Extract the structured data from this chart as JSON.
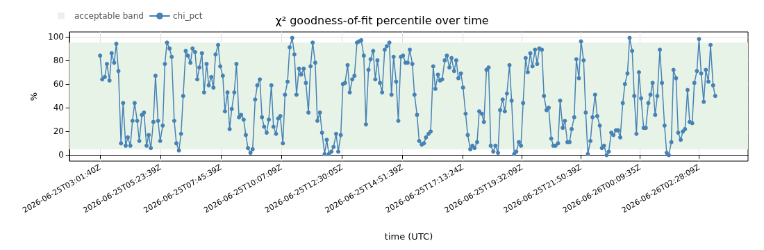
{
  "chart_data": {
    "type": "line",
    "title": "χ² goodness-of-fit percentile over time",
    "xlabel": "time (UTC)",
    "ylabel": "%",
    "x": [
      "2026-06-25T03:02",
      "2026-06-25T03:07",
      "2026-06-25T03:13",
      "2026-06-25T03:18",
      "2026-06-25T03:24",
      "2026-06-25T03:29",
      "2026-06-25T03:35",
      "2026-06-25T03:40",
      "2026-06-25T03:45",
      "2026-06-25T03:51",
      "2026-06-25T03:56",
      "2026-06-25T04:02",
      "2026-06-25T04:07",
      "2026-06-25T04:13",
      "2026-06-25T04:18",
      "2026-06-25T04:23",
      "2026-06-25T04:29",
      "2026-06-25T04:34",
      "2026-06-25T04:40",
      "2026-06-25T04:45",
      "2026-06-25T04:51",
      "2026-06-25T04:56",
      "2026-06-25T05:01",
      "2026-06-25T05:07",
      "2026-06-25T05:12",
      "2026-06-25T05:18",
      "2026-06-25T05:23",
      "2026-06-25T05:29",
      "2026-06-25T05:34",
      "2026-06-25T05:39",
      "2026-06-25T05:45",
      "2026-06-25T05:50",
      "2026-06-25T05:56",
      "2026-06-25T06:01",
      "2026-06-25T06:07",
      "2026-06-25T06:12",
      "2026-06-25T06:17",
      "2026-06-25T06:23",
      "2026-06-25T06:28",
      "2026-06-25T06:34",
      "2026-06-25T06:39",
      "2026-06-25T06:45",
      "2026-06-25T06:50",
      "2026-06-25T06:55",
      "2026-06-25T07:01",
      "2026-06-25T07:06",
      "2026-06-25T07:12",
      "2026-06-25T07:17",
      "2026-06-25T07:23",
      "2026-06-25T07:28",
      "2026-06-25T07:33",
      "2026-06-25T07:39",
      "2026-06-25T07:44",
      "2026-06-25T07:50",
      "2026-06-25T07:55",
      "2026-06-25T08:01",
      "2026-06-25T08:06",
      "2026-06-25T08:11",
      "2026-06-25T08:17",
      "2026-06-25T08:22",
      "2026-06-25T08:28",
      "2026-06-25T08:33",
      "2026-06-25T08:39",
      "2026-06-25T08:44",
      "2026-06-25T08:49",
      "2026-06-25T08:55",
      "2026-06-25T09:00",
      "2026-06-25T09:06",
      "2026-06-25T09:11",
      "2026-06-25T09:17",
      "2026-06-25T09:22",
      "2026-06-25T09:27",
      "2026-06-25T09:33",
      "2026-06-25T09:38",
      "2026-06-25T09:44",
      "2026-06-25T09:49",
      "2026-06-25T09:55",
      "2026-06-25T10:00",
      "2026-06-25T10:05",
      "2026-06-25T10:11",
      "2026-06-25T10:16",
      "2026-06-25T10:22",
      "2026-06-25T10:27",
      "2026-06-25T10:33",
      "2026-06-25T10:38",
      "2026-06-25T10:43",
      "2026-06-25T10:49",
      "2026-06-25T10:54",
      "2026-06-25T11:00",
      "2026-06-25T11:05",
      "2026-06-25T11:11",
      "2026-06-25T11:16",
      "2026-06-25T11:21",
      "2026-06-25T11:27",
      "2026-06-25T11:32",
      "2026-06-25T11:38",
      "2026-06-25T11:43",
      "2026-06-25T11:49",
      "2026-06-25T11:54",
      "2026-06-25T11:59",
      "2026-06-25T12:05",
      "2026-06-25T12:10",
      "2026-06-25T12:16",
      "2026-06-25T12:21",
      "2026-06-25T12:27",
      "2026-06-25T12:32",
      "2026-06-25T12:37",
      "2026-06-25T12:43",
      "2026-06-25T12:48",
      "2026-06-25T12:54",
      "2026-06-25T12:59",
      "2026-06-25T13:05",
      "2026-06-25T13:10",
      "2026-06-25T13:15",
      "2026-06-25T13:21",
      "2026-06-25T13:26",
      "2026-06-25T13:32",
      "2026-06-25T13:37",
      "2026-06-25T13:43",
      "2026-06-25T13:48",
      "2026-06-25T13:53",
      "2026-06-25T13:59",
      "2026-06-25T14:04",
      "2026-06-25T14:10",
      "2026-06-25T14:15",
      "2026-06-25T14:21",
      "2026-06-25T14:26",
      "2026-06-25T14:31",
      "2026-06-25T14:37",
      "2026-06-25T14:42",
      "2026-06-25T14:48",
      "2026-06-25T14:53",
      "2026-06-25T14:59",
      "2026-06-25T15:04",
      "2026-06-25T15:09",
      "2026-06-25T15:15",
      "2026-06-25T15:20",
      "2026-06-25T15:26",
      "2026-06-25T15:31",
      "2026-06-25T15:37",
      "2026-06-25T15:42",
      "2026-06-25T15:47",
      "2026-06-25T15:53",
      "2026-06-25T15:58",
      "2026-06-25T16:04",
      "2026-06-25T16:09",
      "2026-06-25T16:15",
      "2026-06-25T16:20",
      "2026-06-25T16:25",
      "2026-06-25T16:31",
      "2026-06-25T16:36",
      "2026-06-25T16:42",
      "2026-06-25T16:47",
      "2026-06-25T16:53",
      "2026-06-25T16:58",
      "2026-06-25T17:03",
      "2026-06-25T17:09",
      "2026-06-25T17:14",
      "2026-06-25T17:20",
      "2026-06-25T17:25",
      "2026-06-25T17:31",
      "2026-06-25T17:36",
      "2026-06-25T17:41",
      "2026-06-25T17:47",
      "2026-06-25T17:52",
      "2026-06-25T17:58",
      "2026-06-25T18:03",
      "2026-06-25T18:09",
      "2026-06-25T18:14",
      "2026-06-25T18:19",
      "2026-06-25T18:25",
      "2026-06-25T18:30",
      "2026-06-25T18:36",
      "2026-06-25T18:41",
      "2026-06-25T18:47",
      "2026-06-25T18:52",
      "2026-06-25T18:57",
      "2026-06-25T19:03",
      "2026-06-25T19:08",
      "2026-06-25T19:14",
      "2026-06-25T19:19",
      "2026-06-25T19:25",
      "2026-06-25T19:30",
      "2026-06-25T19:35",
      "2026-06-25T19:41",
      "2026-06-25T19:46",
      "2026-06-25T19:52",
      "2026-06-25T19:57",
      "2026-06-25T20:03",
      "2026-06-25T20:08",
      "2026-06-25T20:13",
      "2026-06-25T20:19",
      "2026-06-25T20:24",
      "2026-06-25T20:30",
      "2026-06-25T20:35",
      "2026-06-25T20:41",
      "2026-06-25T20:46",
      "2026-06-25T20:51",
      "2026-06-25T20:57",
      "2026-06-25T21:02",
      "2026-06-25T21:08",
      "2026-06-25T21:13",
      "2026-06-25T21:19",
      "2026-06-25T21:24",
      "2026-06-25T21:29",
      "2026-06-25T21:35",
      "2026-06-25T21:40",
      "2026-06-25T21:46",
      "2026-06-25T21:51",
      "2026-06-25T21:57",
      "2026-06-25T22:02",
      "2026-06-25T22:07",
      "2026-06-25T22:13",
      "2026-06-25T22:18",
      "2026-06-25T22:24",
      "2026-06-25T22:29",
      "2026-06-25T22:35",
      "2026-06-25T22:40",
      "2026-06-25T22:45",
      "2026-06-25T22:51",
      "2026-06-25T22:56",
      "2026-06-25T23:02",
      "2026-06-25T23:07",
      "2026-06-25T23:13",
      "2026-06-25T23:18",
      "2026-06-25T23:23",
      "2026-06-25T23:29",
      "2026-06-25T23:34",
      "2026-06-25T23:40",
      "2026-06-25T23:45",
      "2026-06-25T23:51",
      "2026-06-25T23:56",
      "2026-06-26T00:01",
      "2026-06-26T00:07",
      "2026-06-26T00:12",
      "2026-06-26T00:18",
      "2026-06-26T00:23",
      "2026-06-26T00:29",
      "2026-06-26T00:34",
      "2026-06-26T00:39",
      "2026-06-26T00:45",
      "2026-06-26T00:50",
      "2026-06-26T00:56",
      "2026-06-26T01:01",
      "2026-06-26T01:07",
      "2026-06-26T01:12",
      "2026-06-26T01:17",
      "2026-06-26T01:23",
      "2026-06-26T01:28",
      "2026-06-26T01:34",
      "2026-06-26T01:39",
      "2026-06-26T01:45",
      "2026-06-26T01:50",
      "2026-06-26T01:55",
      "2026-06-26T02:01",
      "2026-06-26T02:06",
      "2026-06-26T02:12",
      "2026-06-26T02:17",
      "2026-06-26T02:23",
      "2026-06-26T02:28",
      "2026-06-26T02:33",
      "2026-06-26T02:39",
      "2026-06-26T02:44",
      "2026-06-26T02:50",
      "2026-06-26T02:55",
      "2026-06-26T03:01",
      "2026-06-26T03:06"
    ],
    "series": [
      {
        "name": "chi_pct",
        "color": "#4682b4",
        "values": [
          84,
          64,
          66,
          77,
          63,
          86,
          78,
          94,
          71,
          10,
          44,
          8,
          15,
          8,
          29,
          44,
          29,
          12,
          34,
          36,
          8,
          17,
          6,
          28,
          67,
          29,
          12,
          25,
          77,
          95,
          90,
          83,
          29,
          10,
          4,
          18,
          50,
          88,
          84,
          78,
          90,
          87,
          64,
          74,
          86,
          53,
          77,
          59,
          66,
          57,
          85,
          93,
          75,
          67,
          37,
          53,
          22,
          39,
          53,
          77,
          32,
          34,
          30,
          17,
          6,
          2,
          5,
          47,
          59,
          64,
          32,
          24,
          19,
          30,
          59,
          24,
          18,
          31,
          33,
          10,
          51,
          62,
          91,
          99,
          85,
          51,
          73,
          68,
          73,
          61,
          36,
          75,
          95,
          78,
          29,
          36,
          19,
          1,
          13,
          1,
          3,
          7,
          18,
          3,
          17,
          60,
          61,
          76,
          53,
          64,
          67,
          95,
          96,
          97,
          84,
          26,
          72,
          81,
          88,
          64,
          80,
          61,
          53,
          89,
          92,
          95,
          51,
          83,
          62,
          29,
          83,
          84,
          78,
          78,
          89,
          77,
          51,
          34,
          12,
          9,
          10,
          15,
          18,
          20,
          75,
          56,
          68,
          63,
          64,
          80,
          84,
          74,
          82,
          71,
          80,
          65,
          69,
          57,
          35,
          17,
          5,
          8,
          6,
          11,
          37,
          35,
          28,
          72,
          74,
          8,
          3,
          8,
          2,
          38,
          47,
          37,
          52,
          76,
          46,
          1,
          3,
          11,
          8,
          44,
          82,
          70,
          86,
          75,
          89,
          77,
          90,
          89,
          50,
          38,
          40,
          14,
          8,
          8,
          10,
          46,
          23,
          29,
          11,
          11,
          22,
          32,
          81,
          65,
          96,
          80,
          36,
          1,
          12,
          32,
          51,
          33,
          25,
          6,
          8,
          0,
          3,
          19,
          17,
          21,
          21,
          15,
          44,
          60,
          69,
          99,
          88,
          50,
          18,
          70,
          48,
          23,
          23,
          44,
          51,
          61,
          34,
          50,
          89,
          61,
          25,
          2,
          0,
          11,
          72,
          65,
          19,
          13,
          20,
          22,
          55,
          28,
          27,
          61,
          71,
          98,
          69,
          45,
          72,
          62,
          93,
          59,
          50
        ]
      }
    ],
    "bands": [
      {
        "axis": "y",
        "from": 5,
        "to": 95,
        "label": "acceptable band",
        "color": "#e8f3e8"
      }
    ],
    "xlim": [
      "2026-06-25T01:50",
      "2026-06-26T04:23"
    ],
    "xticks": [
      {
        "value": "2026-06-25T03:01:40",
        "label": "2026-06-25T03:01:40Z"
      },
      {
        "value": "2026-06-25T05:23:39",
        "label": "2026-06-25T05:23:39Z"
      },
      {
        "value": "2026-06-25T07:45:39",
        "label": "2026-06-25T07:45:39Z"
      },
      {
        "value": "2026-06-25T10:07:09",
        "label": "2026-06-25T10:07:09Z"
      },
      {
        "value": "2026-06-25T12:30:05",
        "label": "2026-06-25T12:30:05Z"
      },
      {
        "value": "2026-06-25T14:51:39",
        "label": "2026-06-25T14:51:39Z"
      },
      {
        "value": "2026-06-25T17:13:24",
        "label": "2026-06-25T17:13:24Z"
      },
      {
        "value": "2026-06-25T19:32:09",
        "label": "2026-06-25T19:32:09Z"
      },
      {
        "value": "2026-06-25T21:50:39",
        "label": "2026-06-25T21:50:39Z"
      },
      {
        "value": "2026-06-26T00:09:35",
        "label": "2026-06-26T00:09:35Z"
      },
      {
        "value": "2026-06-26T02:28:09",
        "label": "2026-06-26T02:28:09Z"
      }
    ],
    "ylim": [
      -5,
      104
    ],
    "yticks": [
      0,
      20,
      40,
      60,
      80,
      100
    ],
    "grid": true,
    "legend": "top left",
    "marker": "circle",
    "line_style": "solid"
  }
}
